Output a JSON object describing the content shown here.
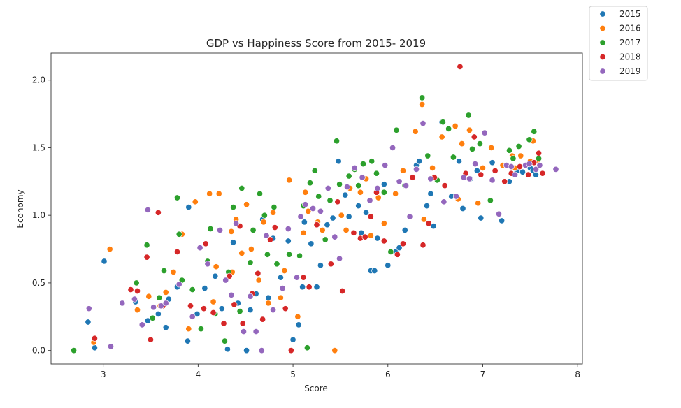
{
  "chart_data": {
    "type": "scatter",
    "title": "GDP vs Happiness Score from 2015- 2019",
    "xlabel": "Score",
    "ylabel": "Economy",
    "xlim": [
      2.45,
      8.05
    ],
    "ylim": [
      -0.1,
      2.2
    ],
    "xticks": [
      "3",
      "4",
      "5",
      "6",
      "7",
      "8"
    ],
    "yticks": [
      "0.0",
      "0.5",
      "1.0",
      "1.5",
      "2.0"
    ],
    "grid": false,
    "legend_position": "upper-right-outside",
    "series": [
      {
        "name": "2015",
        "color": "#1f77b4",
        "points": [
          [
            2.84,
            0.21
          ],
          [
            2.91,
            0.02
          ],
          [
            3.01,
            0.66
          ],
          [
            3.34,
            0.36
          ],
          [
            3.47,
            0.22
          ],
          [
            3.58,
            0.27
          ],
          [
            3.66,
            0.17
          ],
          [
            3.69,
            0.38
          ],
          [
            3.78,
            0.47
          ],
          [
            3.89,
            0.07
          ],
          [
            3.9,
            1.06
          ],
          [
            3.99,
            0.27
          ],
          [
            4.07,
            0.46
          ],
          [
            4.18,
            0.55
          ],
          [
            4.25,
            0.31
          ],
          [
            4.31,
            0.01
          ],
          [
            4.37,
            0.8
          ],
          [
            4.42,
            0.35
          ],
          [
            4.51,
            0.0
          ],
          [
            4.55,
            0.3
          ],
          [
            4.61,
            0.42
          ],
          [
            4.68,
            0.97
          ],
          [
            4.74,
            0.39
          ],
          [
            4.79,
            0.83
          ],
          [
            4.87,
            0.54
          ],
          [
            4.95,
            0.81
          ],
          [
            5.0,
            0.08
          ],
          [
            5.06,
            0.19
          ],
          [
            5.1,
            0.47
          ],
          [
            5.12,
            0.95
          ],
          [
            5.19,
            0.79
          ],
          [
            5.25,
            0.47
          ],
          [
            5.29,
            0.63
          ],
          [
            5.36,
            0.93
          ],
          [
            5.42,
            0.98
          ],
          [
            5.48,
            1.4
          ],
          [
            5.55,
            1.15
          ],
          [
            5.59,
            0.99
          ],
          [
            5.69,
            1.07
          ],
          [
            5.72,
            0.87
          ],
          [
            5.77,
            1.02
          ],
          [
            5.82,
            0.59
          ],
          [
            5.86,
            0.59
          ],
          [
            5.89,
            0.83
          ],
          [
            5.96,
            1.23
          ],
          [
            6.0,
            0.63
          ],
          [
            6.08,
            0.73
          ],
          [
            6.12,
            0.76
          ],
          [
            6.18,
            0.89
          ],
          [
            6.3,
            1.37
          ],
          [
            6.33,
            1.4
          ],
          [
            6.41,
            1.07
          ],
          [
            6.45,
            1.16
          ],
          [
            6.48,
            0.92
          ],
          [
            6.57,
            1.69
          ],
          [
            6.67,
            1.14
          ],
          [
            6.75,
            1.4
          ],
          [
            6.79,
            1.05
          ],
          [
            6.87,
            1.27
          ],
          [
            6.94,
            1.33
          ],
          [
            6.98,
            0.98
          ],
          [
            7.1,
            1.39
          ],
          [
            7.2,
            0.96
          ],
          [
            7.28,
            1.25
          ],
          [
            7.36,
            1.33
          ],
          [
            7.42,
            1.32
          ],
          [
            7.5,
            1.35
          ],
          [
            7.53,
            1.33
          ],
          [
            7.56,
            1.3
          ],
          [
            7.58,
            1.4
          ]
        ]
      },
      {
        "name": "2016",
        "color": "#ff7f0e",
        "points": [
          [
            2.9,
            0.06
          ],
          [
            3.07,
            0.75
          ],
          [
            3.36,
            0.3
          ],
          [
            3.48,
            0.4
          ],
          [
            3.6,
            0.33
          ],
          [
            3.66,
            0.43
          ],
          [
            3.74,
            0.58
          ],
          [
            3.83,
            0.86
          ],
          [
            3.9,
            0.16
          ],
          [
            3.97,
            1.1
          ],
          [
            4.12,
            1.16
          ],
          [
            4.16,
            0.36
          ],
          [
            4.19,
            0.62
          ],
          [
            4.22,
            1.16
          ],
          [
            4.28,
            0.07
          ],
          [
            4.35,
            0.88
          ],
          [
            4.36,
            0.58
          ],
          [
            4.4,
            0.97
          ],
          [
            4.46,
            0.72
          ],
          [
            4.51,
            1.08
          ],
          [
            4.56,
            0.75
          ],
          [
            4.64,
            0.52
          ],
          [
            4.69,
            0.95
          ],
          [
            4.74,
            0.35
          ],
          [
            4.79,
            1.02
          ],
          [
            4.87,
            0.39
          ],
          [
            4.91,
            0.59
          ],
          [
            4.96,
            1.26
          ],
          [
            5.05,
            0.25
          ],
          [
            5.11,
            0.87
          ],
          [
            5.13,
            1.17
          ],
          [
            5.16,
            1.03
          ],
          [
            5.26,
            0.95
          ],
          [
            5.31,
            0.89
          ],
          [
            5.44,
            0.0
          ],
          [
            5.51,
            1.0
          ],
          [
            5.56,
            0.89
          ],
          [
            5.6,
            1.2
          ],
          [
            5.71,
            1.17
          ],
          [
            5.77,
            1.27
          ],
          [
            5.82,
            0.85
          ],
          [
            5.9,
            1.13
          ],
          [
            5.96,
            0.94
          ],
          [
            6.08,
            1.16
          ],
          [
            6.16,
            1.33
          ],
          [
            6.29,
            1.62
          ],
          [
            6.36,
            1.82
          ],
          [
            6.38,
            0.97
          ],
          [
            6.47,
            1.35
          ],
          [
            6.57,
            1.58
          ],
          [
            6.71,
            1.66
          ],
          [
            6.74,
            1.12
          ],
          [
            6.78,
            1.53
          ],
          [
            6.86,
            1.63
          ],
          [
            6.95,
            1.09
          ],
          [
            7.0,
            1.35
          ],
          [
            7.09,
            1.5
          ],
          [
            7.21,
            1.37
          ],
          [
            7.31,
            1.44
          ],
          [
            7.34,
            1.35
          ],
          [
            7.4,
            1.44
          ],
          [
            7.5,
            1.4
          ],
          [
            7.53,
            1.55
          ],
          [
            7.58,
            1.4
          ]
        ]
      },
      {
        "name": "2017",
        "color": "#2ca02c",
        "points": [
          [
            2.69,
            0.0
          ],
          [
            3.35,
            0.5
          ],
          [
            3.46,
            0.78
          ],
          [
            3.52,
            0.24
          ],
          [
            3.59,
            0.39
          ],
          [
            3.64,
            0.59
          ],
          [
            3.78,
            1.13
          ],
          [
            3.8,
            0.86
          ],
          [
            3.83,
            0.52
          ],
          [
            3.94,
            0.45
          ],
          [
            4.03,
            0.16
          ],
          [
            4.1,
            0.66
          ],
          [
            4.13,
            0.9
          ],
          [
            4.18,
            0.27
          ],
          [
            4.28,
            0.07
          ],
          [
            4.32,
            0.58
          ],
          [
            4.37,
            1.06
          ],
          [
            4.44,
            0.29
          ],
          [
            4.46,
            1.2
          ],
          [
            4.55,
            0.65
          ],
          [
            4.58,
            0.89
          ],
          [
            4.65,
            1.16
          ],
          [
            4.7,
            1.0
          ],
          [
            4.73,
            0.71
          ],
          [
            4.8,
            1.06
          ],
          [
            4.83,
            0.64
          ],
          [
            4.96,
            0.71
          ],
          [
            5.07,
            0.7
          ],
          [
            5.11,
            1.07
          ],
          [
            5.15,
            0.02
          ],
          [
            5.18,
            1.24
          ],
          [
            5.23,
            1.33
          ],
          [
            5.27,
            1.14
          ],
          [
            5.34,
            0.82
          ],
          [
            5.39,
            1.11
          ],
          [
            5.46,
            1.55
          ],
          [
            5.49,
            1.23
          ],
          [
            5.59,
            1.29
          ],
          [
            5.65,
            1.34
          ],
          [
            5.69,
            1.22
          ],
          [
            5.74,
            1.38
          ],
          [
            5.83,
            1.4
          ],
          [
            5.88,
            1.31
          ],
          [
            5.96,
            1.17
          ],
          [
            6.03,
            0.73
          ],
          [
            6.09,
            1.63
          ],
          [
            6.18,
            1.22
          ],
          [
            6.36,
            1.87
          ],
          [
            6.42,
            1.44
          ],
          [
            6.52,
            1.26
          ],
          [
            6.58,
            1.69
          ],
          [
            6.64,
            1.64
          ],
          [
            6.69,
            1.43
          ],
          [
            6.85,
            1.74
          ],
          [
            6.89,
            1.49
          ],
          [
            6.97,
            1.53
          ],
          [
            7.08,
            1.11
          ],
          [
            7.28,
            1.48
          ],
          [
            7.32,
            1.42
          ],
          [
            7.38,
            1.51
          ],
          [
            7.49,
            1.56
          ],
          [
            7.54,
            1.62
          ],
          [
            7.59,
            1.42
          ]
        ]
      },
      {
        "name": "2018",
        "color": "#d62728",
        "points": [
          [
            2.91,
            0.09
          ],
          [
            3.29,
            0.45
          ],
          [
            3.36,
            0.44
          ],
          [
            3.46,
            0.69
          ],
          [
            3.5,
            0.08
          ],
          [
            3.58,
            1.02
          ],
          [
            3.63,
            0.33
          ],
          [
            3.78,
            0.73
          ],
          [
            3.92,
            0.33
          ],
          [
            4.06,
            0.31
          ],
          [
            4.08,
            0.79
          ],
          [
            4.16,
            0.28
          ],
          [
            4.27,
            0.2
          ],
          [
            4.33,
            0.55
          ],
          [
            4.38,
            0.34
          ],
          [
            4.44,
            0.92
          ],
          [
            4.47,
            0.2
          ],
          [
            4.57,
            0.42
          ],
          [
            4.63,
            0.57
          ],
          [
            4.68,
            0.23
          ],
          [
            4.76,
            0.82
          ],
          [
            4.81,
            0.91
          ],
          [
            4.92,
            0.31
          ],
          [
            4.98,
            0.0
          ],
          [
            5.11,
            0.54
          ],
          [
            5.17,
            0.47
          ],
          [
            5.25,
            0.93
          ],
          [
            5.4,
            0.64
          ],
          [
            5.47,
            1.1
          ],
          [
            5.52,
            0.44
          ],
          [
            5.64,
            0.87
          ],
          [
            5.71,
            0.83
          ],
          [
            5.76,
            0.84
          ],
          [
            5.82,
            0.99
          ],
          [
            5.88,
            1.17
          ],
          [
            5.96,
            0.81
          ],
          [
            6.1,
            0.71
          ],
          [
            6.16,
            0.79
          ],
          [
            6.26,
            1.28
          ],
          [
            6.37,
            0.78
          ],
          [
            6.43,
            0.94
          ],
          [
            6.49,
            1.28
          ],
          [
            6.6,
            1.22
          ],
          [
            6.76,
            2.1
          ],
          [
            6.82,
            1.31
          ],
          [
            6.91,
            1.58
          ],
          [
            6.98,
            1.3
          ],
          [
            7.13,
            1.33
          ],
          [
            7.23,
            1.25
          ],
          [
            7.3,
            1.31
          ],
          [
            7.39,
            1.36
          ],
          [
            7.48,
            1.3
          ],
          [
            7.54,
            1.39
          ],
          [
            7.59,
            1.46
          ],
          [
            7.63,
            1.31
          ]
        ]
      },
      {
        "name": "2019",
        "color": "#9467bd",
        "points": [
          [
            2.85,
            0.31
          ],
          [
            3.08,
            0.03
          ],
          [
            3.2,
            0.35
          ],
          [
            3.33,
            0.38
          ],
          [
            3.41,
            0.19
          ],
          [
            3.47,
            1.04
          ],
          [
            3.53,
            0.32
          ],
          [
            3.61,
            0.33
          ],
          [
            3.66,
            0.35
          ],
          [
            3.8,
            0.49
          ],
          [
            3.94,
            0.25
          ],
          [
            4.02,
            0.76
          ],
          [
            4.1,
            0.64
          ],
          [
            4.23,
            0.89
          ],
          [
            4.29,
            0.52
          ],
          [
            4.35,
            0.41
          ],
          [
            4.4,
            0.94
          ],
          [
            4.48,
            0.14
          ],
          [
            4.55,
            0.4
          ],
          [
            4.61,
            0.14
          ],
          [
            4.67,
            0.0
          ],
          [
            4.72,
            0.85
          ],
          [
            4.79,
            0.3
          ],
          [
            4.89,
            0.46
          ],
          [
            4.95,
            0.9
          ],
          [
            5.04,
            0.54
          ],
          [
            5.08,
            0.99
          ],
          [
            5.13,
            1.08
          ],
          [
            5.21,
            1.05
          ],
          [
            5.29,
            1.03
          ],
          [
            5.37,
            1.2
          ],
          [
            5.44,
            0.84
          ],
          [
            5.49,
            0.68
          ],
          [
            5.57,
            1.21
          ],
          [
            5.65,
            1.35
          ],
          [
            5.73,
            1.28
          ],
          [
            5.81,
            1.11
          ],
          [
            5.89,
            1.2
          ],
          [
            5.97,
            1.37
          ],
          [
            6.05,
            1.5
          ],
          [
            6.12,
            1.25
          ],
          [
            6.19,
            1.22
          ],
          [
            6.23,
            0.99
          ],
          [
            6.3,
            1.34
          ],
          [
            6.37,
            1.68
          ],
          [
            6.45,
            1.27
          ],
          [
            6.59,
            1.1
          ],
          [
            6.72,
            1.14
          ],
          [
            6.8,
            1.28
          ],
          [
            6.86,
            1.27
          ],
          [
            6.92,
            1.38
          ],
          [
            7.02,
            1.61
          ],
          [
            7.1,
            1.26
          ],
          [
            7.17,
            1.01
          ],
          [
            7.25,
            1.37
          ],
          [
            7.3,
            1.36
          ],
          [
            7.34,
            1.3
          ],
          [
            7.45,
            1.37
          ],
          [
            7.49,
            1.38
          ],
          [
            7.56,
            1.34
          ],
          [
            7.6,
            1.37
          ],
          [
            7.77,
            1.34
          ]
        ]
      }
    ]
  }
}
